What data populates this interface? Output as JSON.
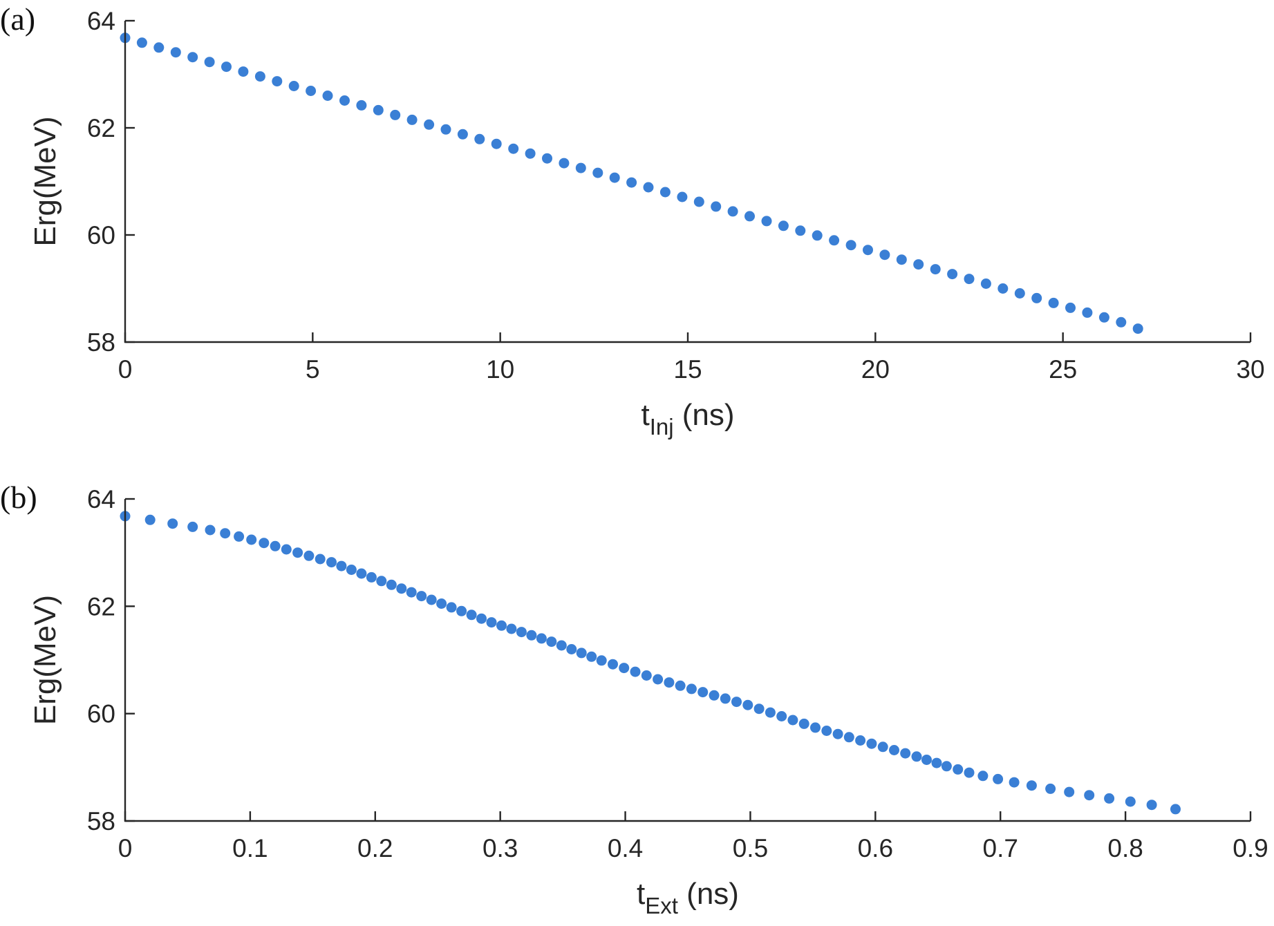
{
  "chart_data": [
    {
      "type": "scatter",
      "panel_label": "(a)",
      "xlabel_main": "t",
      "xlabel_sub": "Inj",
      "xlabel_unit": " (ns)",
      "ylabel": "Erg(MeV)",
      "xlim": [
        0,
        30
      ],
      "ylim": [
        58,
        64
      ],
      "xticks": [
        "0",
        "5",
        "10",
        "15",
        "20",
        "25",
        "30"
      ],
      "yticks": [
        "58",
        "60",
        "62",
        "64"
      ],
      "grid": false,
      "marker_color": "#3a7fd5",
      "series": [
        {
          "x": [
            0,
            0.45,
            0.9,
            1.35,
            1.8,
            2.25,
            2.7,
            3.15,
            3.6,
            4.05,
            4.5,
            4.95,
            5.4,
            5.85,
            6.3,
            6.75,
            7.2,
            7.65,
            8.1,
            8.55,
            9.0,
            9.45,
            9.9,
            10.35,
            10.8,
            11.25,
            11.7,
            12.15,
            12.6,
            13.05,
            13.5,
            13.95,
            14.4,
            14.85,
            15.3,
            15.75,
            16.2,
            16.65,
            17.1,
            17.55,
            18.0,
            18.45,
            18.9,
            19.35,
            19.8,
            20.25,
            20.7,
            21.15,
            21.6,
            22.05,
            22.5,
            22.95,
            23.4,
            23.85,
            24.3,
            24.75,
            25.2,
            25.65,
            26.1,
            26.55,
            27.0
          ],
          "y": [
            63.68,
            63.59,
            63.5,
            63.41,
            63.32,
            63.23,
            63.14,
            63.05,
            62.96,
            62.87,
            62.78,
            62.69,
            62.6,
            62.51,
            62.42,
            62.33,
            62.24,
            62.15,
            62.06,
            61.97,
            61.88,
            61.79,
            61.7,
            61.61,
            61.52,
            61.43,
            61.34,
            61.25,
            61.16,
            61.07,
            60.98,
            60.89,
            60.8,
            60.71,
            60.62,
            60.53,
            60.44,
            60.35,
            60.26,
            60.17,
            60.08,
            59.99,
            59.9,
            59.81,
            59.72,
            59.63,
            59.54,
            59.45,
            59.36,
            59.27,
            59.18,
            59.09,
            59.0,
            58.91,
            58.82,
            58.73,
            58.64,
            58.55,
            58.46,
            58.37,
            58.25
          ]
        }
      ]
    },
    {
      "type": "scatter",
      "panel_label": "(b)",
      "xlabel_main": "t",
      "xlabel_sub": "Ext",
      "xlabel_unit": " (ns)",
      "ylabel": "Erg(MeV)",
      "xlim": [
        0,
        0.9
      ],
      "ylim": [
        58,
        64
      ],
      "xticks": [
        "0",
        "0.1",
        "0.2",
        "0.3",
        "0.4",
        "0.5",
        "0.6",
        "0.7",
        "0.8",
        "0.9"
      ],
      "yticks": [
        "58",
        "60",
        "62",
        "64"
      ],
      "grid": false,
      "marker_color": "#3a7fd5",
      "series": [
        {
          "x": [
            0,
            0.02,
            0.038,
            0.054,
            0.068,
            0.08,
            0.091,
            0.101,
            0.111,
            0.12,
            0.129,
            0.138,
            0.147,
            0.156,
            0.165,
            0.173,
            0.181,
            0.189,
            0.197,
            0.205,
            0.213,
            0.221,
            0.229,
            0.237,
            0.245,
            0.253,
            0.261,
            0.269,
            0.277,
            0.285,
            0.293,
            0.301,
            0.309,
            0.317,
            0.325,
            0.333,
            0.341,
            0.349,
            0.357,
            0.365,
            0.373,
            0.381,
            0.39,
            0.399,
            0.408,
            0.417,
            0.426,
            0.435,
            0.444,
            0.453,
            0.462,
            0.471,
            0.48,
            0.489,
            0.498,
            0.507,
            0.516,
            0.525,
            0.534,
            0.543,
            0.552,
            0.561,
            0.57,
            0.579,
            0.588,
            0.597,
            0.606,
            0.615,
            0.624,
            0.633,
            0.641,
            0.649,
            0.657,
            0.666,
            0.675,
            0.686,
            0.698,
            0.711,
            0.725,
            0.74,
            0.755,
            0.771,
            0.787,
            0.804,
            0.821,
            0.84
          ],
          "y": [
            63.68,
            63.61,
            63.54,
            63.48,
            63.42,
            63.36,
            63.3,
            63.24,
            63.18,
            63.12,
            63.06,
            63.0,
            62.94,
            62.88,
            62.82,
            62.75,
            62.68,
            62.61,
            62.54,
            62.47,
            62.4,
            62.33,
            62.26,
            62.19,
            62.12,
            62.05,
            61.98,
            61.91,
            61.84,
            61.77,
            61.7,
            61.64,
            61.58,
            61.52,
            61.46,
            61.4,
            61.34,
            61.27,
            61.2,
            61.13,
            61.06,
            60.99,
            60.92,
            60.85,
            60.78,
            60.71,
            60.64,
            60.58,
            60.52,
            60.46,
            60.4,
            60.34,
            60.28,
            60.22,
            60.16,
            60.09,
            60.02,
            59.95,
            59.88,
            59.81,
            59.74,
            59.68,
            59.62,
            59.56,
            59.5,
            59.44,
            59.38,
            59.32,
            59.26,
            59.2,
            59.14,
            59.08,
            59.02,
            58.96,
            58.9,
            58.84,
            58.78,
            58.72,
            58.66,
            58.6,
            58.54,
            58.48,
            58.42,
            58.36,
            58.3,
            58.22
          ]
        }
      ]
    }
  ]
}
